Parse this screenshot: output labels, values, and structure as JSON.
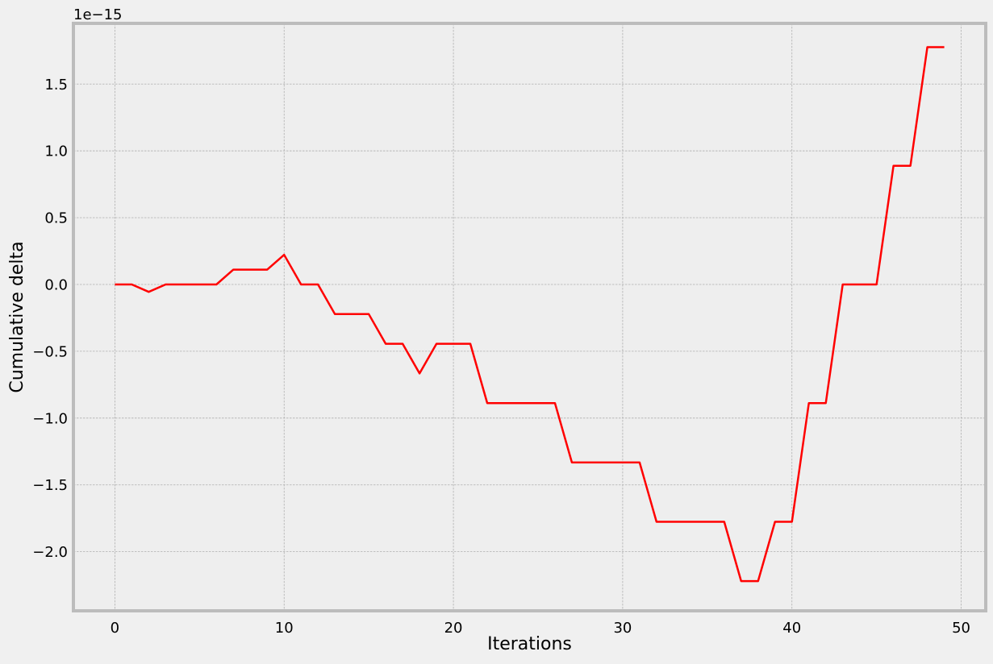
{
  "chart_data": {
    "type": "line",
    "title": "",
    "xlabel": "Iterations",
    "ylabel": "Cumulative delta",
    "y_offset_text": "1e−15",
    "y_scale_exponent": -15,
    "xlim": [
      -2.45,
      51.45
    ],
    "ylim": [
      -2.4425,
      1.954
    ],
    "x_ticks": [
      0,
      10,
      20,
      30,
      40,
      50
    ],
    "x_tick_labels": [
      "0",
      "10",
      "20",
      "30",
      "40",
      "50"
    ],
    "y_ticks": [
      -2.0,
      -1.5,
      -1.0,
      -0.5,
      0.0,
      0.5,
      1.0,
      1.5
    ],
    "y_tick_labels": [
      "−2.0",
      "−1.5",
      "−1.0",
      "−0.5",
      "0.0",
      "0.5",
      "1.0",
      "1.5"
    ],
    "grid": true,
    "legend": "none",
    "colors": {
      "background": "#f0f0f0",
      "plot_background": "#eeeeee",
      "frame": "#bcbcbc",
      "grid": "#b0b0b0",
      "line": "#ff0000"
    },
    "series": [
      {
        "x": [
          0,
          1,
          2,
          3,
          4,
          5,
          6,
          7,
          8,
          9,
          10,
          11,
          12,
          13,
          14,
          15,
          16,
          17,
          18,
          19,
          20,
          21,
          22,
          23,
          24,
          25,
          26,
          27,
          28,
          29,
          30,
          31,
          32,
          33,
          34,
          35,
          36,
          37,
          38,
          39,
          40,
          41,
          42,
          43,
          44,
          45,
          46,
          47,
          48,
          49
        ],
        "values": [
          0.0,
          0.0,
          -0.0555,
          0.0,
          0.0,
          0.0,
          0.0,
          0.111,
          0.111,
          0.111,
          0.222,
          0.0,
          0.0,
          -0.222,
          -0.222,
          -0.222,
          -0.444,
          -0.444,
          -0.666,
          -0.444,
          -0.444,
          -0.444,
          -0.888,
          -0.888,
          -0.888,
          -0.888,
          -0.888,
          -1.332,
          -1.332,
          -1.332,
          -1.332,
          -1.332,
          -1.776,
          -1.776,
          -1.776,
          -1.776,
          -1.776,
          -2.22,
          -2.22,
          -1.776,
          -1.776,
          -0.888,
          -0.888,
          0.0,
          0.0,
          0.0,
          0.888,
          0.888,
          1.776,
          1.776
        ]
      }
    ]
  }
}
